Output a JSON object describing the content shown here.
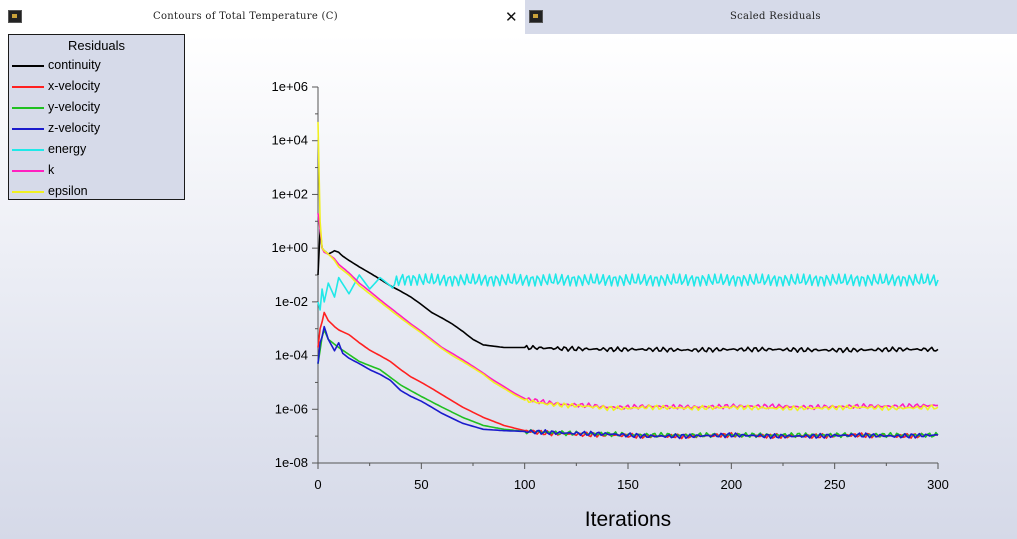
{
  "tabs": [
    {
      "title": "Contours of Total Temperature (C)",
      "close": "✕",
      "active": true
    },
    {
      "title": "Scaled Residuals",
      "active": false
    }
  ],
  "legend": {
    "title": "Residuals",
    "items": [
      {
        "label": "continuity",
        "color": "#000000"
      },
      {
        "label": "x-velocity",
        "color": "#ff2020"
      },
      {
        "label": "y-velocity",
        "color": "#20c020"
      },
      {
        "label": "z-velocity",
        "color": "#1a1acc"
      },
      {
        "label": "energy",
        "color": "#20e8e8"
      },
      {
        "label": "k",
        "color": "#ff20c0"
      },
      {
        "label": "epsilon",
        "color": "#f0f020"
      }
    ]
  },
  "chart_data": {
    "type": "line",
    "xlabel": "Iterations",
    "ylabel": "",
    "xlim": [
      0,
      300
    ],
    "ylim": [
      1e-08,
      1000000.0
    ],
    "yscale": "log",
    "xticks": [
      "0",
      "50",
      "100",
      "150",
      "200",
      "250",
      "300"
    ],
    "yticks": [
      "1e-08",
      "1e-06",
      "1e-04",
      "1e-02",
      "1e+00",
      "1e+02",
      "1e+04",
      "1e+06"
    ],
    "grid": false,
    "legend_position": "top-left",
    "series": [
      {
        "name": "continuity",
        "color": "#000000",
        "x": [
          0,
          1,
          2,
          3,
          5,
          8,
          10,
          12,
          15,
          20,
          25,
          30,
          35,
          40,
          45,
          50,
          55,
          60,
          65,
          70,
          75,
          80,
          90,
          100,
          110,
          120,
          140,
          160,
          180,
          200,
          220,
          240,
          260,
          280,
          300
        ],
        "y": [
          0.1,
          5,
          1,
          0.8,
          0.6,
          0.8,
          0.7,
          0.5,
          0.35,
          0.2,
          0.12,
          0.07,
          0.04,
          0.025,
          0.015,
          0.008,
          0.004,
          0.0025,
          0.0015,
          0.0008,
          0.0004,
          0.00025,
          0.0002,
          0.0002,
          0.00019,
          0.00018,
          0.00017,
          0.00017,
          0.00016,
          0.00017,
          0.00017,
          0.00016,
          0.00016,
          0.00017,
          0.00017
        ]
      },
      {
        "name": "x-velocity",
        "color": "#ff2020",
        "x": [
          0,
          1,
          2,
          3,
          5,
          8,
          10,
          15,
          20,
          25,
          30,
          35,
          40,
          45,
          50,
          55,
          60,
          70,
          80,
          90,
          100,
          110,
          120,
          140,
          160,
          180,
          200,
          220,
          240,
          260,
          280,
          300
        ],
        "y": [
          0.0002,
          0.001,
          0.0018,
          0.004,
          0.002,
          0.0012,
          0.0009,
          0.0006,
          0.0003,
          0.00016,
          0.0001,
          6e-05,
          3e-05,
          1.6e-05,
          1e-05,
          6e-06,
          3.5e-06,
          1.2e-06,
          5e-07,
          2.5e-07,
          1.6e-07,
          1.3e-07,
          1.2e-07,
          1.1e-07,
          1e-07,
          1e-07,
          1.1e-07,
          1e-07,
          1e-07,
          1.1e-07,
          1e-07,
          1.1e-07
        ]
      },
      {
        "name": "y-velocity",
        "color": "#20c020",
        "x": [
          0,
          2,
          3,
          5,
          10,
          20,
          30,
          40,
          50,
          60,
          70,
          80,
          90,
          100,
          120,
          140,
          160,
          180,
          200,
          220,
          240,
          260,
          280,
          300
        ],
        "y": [
          5e-05,
          0.0005,
          0.0009,
          0.0004,
          0.0002,
          6e-05,
          3e-05,
          8e-06,
          3e-06,
          1.2e-06,
          5e-07,
          2.5e-07,
          1.8e-07,
          1.5e-07,
          1.3e-07,
          1.2e-07,
          1.1e-07,
          1.1e-07,
          1.1e-07,
          1.1e-07,
          1.1e-07,
          1.1e-07,
          1.1e-07,
          1.1e-07
        ]
      },
      {
        "name": "z-velocity",
        "color": "#1a1acc",
        "x": [
          0,
          1,
          2,
          3,
          5,
          8,
          10,
          12,
          15,
          20,
          25,
          30,
          35,
          40,
          45,
          50,
          55,
          60,
          70,
          80,
          90,
          100,
          110,
          120,
          140,
          160,
          180,
          200,
          220,
          240,
          260,
          280,
          300
        ],
        "y": [
          5e-05,
          0.0003,
          0.0005,
          0.0012,
          0.0004,
          0.00015,
          0.0003,
          0.00012,
          8e-05,
          5e-05,
          3e-05,
          2e-05,
          1.2e-05,
          5e-06,
          3e-06,
          2e-06,
          1.2e-06,
          7e-07,
          3e-07,
          1.8e-07,
          1.6e-07,
          1.5e-07,
          1.4e-07,
          1.3e-07,
          1.2e-07,
          1e-07,
          1e-07,
          1.1e-07,
          1e-07,
          1e-07,
          1.1e-07,
          1e-07,
          1.1e-07
        ]
      },
      {
        "name": "energy",
        "color": "#20e8e8",
        "x": [
          0,
          1,
          2,
          3,
          5,
          8,
          10,
          15,
          20,
          25,
          30,
          35,
          40,
          60,
          80,
          100,
          150,
          200,
          250,
          300
        ],
        "y": [
          0.01,
          0.005,
          0.03,
          0.01,
          0.05,
          0.015,
          0.08,
          0.02,
          0.1,
          0.03,
          0.08,
          0.04,
          0.07,
          0.065,
          0.065,
          0.065,
          0.065,
          0.065,
          0.065,
          0.065
        ]
      },
      {
        "name": "k",
        "color": "#ff20c0",
        "x": [
          0,
          1,
          2,
          3,
          5,
          8,
          10,
          15,
          20,
          25,
          30,
          35,
          40,
          45,
          50,
          55,
          60,
          65,
          70,
          75,
          80,
          85,
          90,
          95,
          100,
          110,
          120,
          130,
          140,
          150,
          160,
          180,
          200,
          220,
          240,
          260,
          280,
          300
        ],
        "y": [
          20,
          5,
          1,
          0.7,
          0.6,
          0.4,
          0.25,
          0.12,
          0.05,
          0.025,
          0.012,
          0.006,
          0.003,
          0.0015,
          0.0008,
          0.0004,
          0.0002,
          0.00012,
          7e-05,
          4e-05,
          2.2e-05,
          1.2e-05,
          7e-06,
          4e-06,
          2.5e-06,
          1.8e-06,
          1.5e-06,
          1.4e-06,
          1.2e-06,
          1.2e-06,
          1.3e-06,
          1.2e-06,
          1.3e-06,
          1.3e-06,
          1.2e-06,
          1.3e-06,
          1.3e-06,
          1.4e-06
        ]
      },
      {
        "name": "epsilon",
        "color": "#f0f020",
        "x": [
          0,
          1,
          2,
          3,
          5,
          8,
          10,
          15,
          20,
          25,
          30,
          35,
          40,
          45,
          50,
          55,
          60,
          65,
          70,
          75,
          80,
          85,
          90,
          95,
          100,
          110,
          120,
          130,
          140,
          150,
          160,
          180,
          200,
          220,
          240,
          260,
          280,
          300
        ],
        "y": [
          50000,
          10,
          1,
          0.8,
          0.6,
          0.35,
          0.2,
          0.1,
          0.04,
          0.02,
          0.01,
          0.005,
          0.0025,
          0.0013,
          0.0007,
          0.00035,
          0.00018,
          0.0001,
          6e-05,
          3.5e-05,
          2e-05,
          1e-05,
          6e-06,
          3.5e-06,
          2.2e-06,
          1.6e-06,
          1.4e-06,
          1.3e-06,
          1.1e-06,
          1.1e-06,
          1.2e-06,
          1.1e-06,
          1.2e-06,
          1.1e-06,
          1.1e-06,
          1.2e-06,
          1.1e-06,
          1.2e-06
        ]
      }
    ]
  }
}
